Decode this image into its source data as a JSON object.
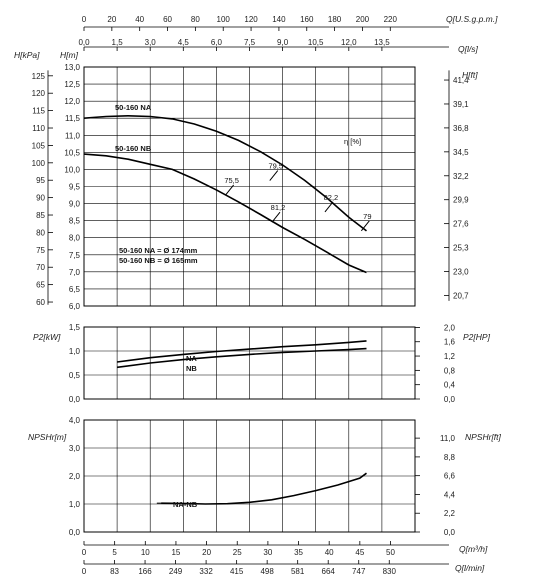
{
  "chart_data": [
    {
      "type": "line",
      "panel": "head",
      "x_unit_label": "Q[l/s]",
      "top_axis_label": "Q[U.S.g.p.m.]",
      "top_ticks": [
        "0",
        "20",
        "40",
        "60",
        "80",
        "100",
        "120",
        "140",
        "160",
        "180",
        "200",
        "220"
      ],
      "x_ticks": [
        "0,0",
        "1,5",
        "3,0",
        "4,5",
        "6,0",
        "7,5",
        "9,0",
        "10,5",
        "12,0",
        "13,5"
      ],
      "xlim": [
        0,
        15
      ],
      "ylabel_left": "H[m]",
      "ylabel_far_left": "H[kPa]",
      "ylabel_right": "H[ft]",
      "ylim": [
        6.0,
        13.0
      ],
      "y_ticks": [
        "6,0",
        "6,5",
        "7,0",
        "7,5",
        "8,0",
        "8,5",
        "9,0",
        "9,5",
        "10,0",
        "10,5",
        "11,0",
        "11,5",
        "12,0",
        "12,5",
        "13,0"
      ],
      "kpa_ticks": [
        "60",
        "65",
        "70",
        "75",
        "80",
        "85",
        "90",
        "95",
        "100",
        "105",
        "110",
        "115",
        "120",
        "125"
      ],
      "ft_ticks": [
        "20,7",
        "23,0",
        "25,3",
        "27,6",
        "29,9",
        "32,2",
        "34,5",
        "36,8",
        "39,1",
        "41,4"
      ],
      "eta_label": "η [%]",
      "series": [
        {
          "name": "50-160 NA",
          "x": [
            0,
            1,
            2,
            3,
            4,
            5,
            6,
            7,
            8,
            9,
            10,
            11,
            12,
            12.8
          ],
          "y": [
            11.5,
            11.55,
            11.57,
            11.55,
            11.48,
            11.33,
            11.12,
            10.85,
            10.52,
            10.13,
            9.68,
            9.17,
            8.6,
            8.2
          ]
        },
        {
          "name": "50-160 NB",
          "x": [
            0,
            1,
            2,
            3,
            4,
            5,
            6,
            7,
            8,
            9,
            10,
            11,
            12,
            12.8
          ],
          "y": [
            10.45,
            10.4,
            10.3,
            10.15,
            10.0,
            9.72,
            9.4,
            9.05,
            8.68,
            8.3,
            7.95,
            7.58,
            7.2,
            6.98
          ]
        }
      ],
      "efficiency_marks": [
        {
          "label": "75,5",
          "x": 6.6,
          "y": 9.4
        },
        {
          "label": "79,5",
          "x": 8.6,
          "y": 9.82
        },
        {
          "label": "81,2",
          "x": 8.7,
          "y": 8.6
        },
        {
          "label": "82,2",
          "x": 11.1,
          "y": 8.9
        },
        {
          "label": "79",
          "x": 12.75,
          "y": 8.35
        }
      ],
      "legend": [
        "50-160 NA = Ø 174mm",
        "50-160 NB = Ø 165mm"
      ]
    },
    {
      "type": "line",
      "panel": "power",
      "ylabel_left": "P2[kW]",
      "ylabel_right": "P2[HP]",
      "ylim": [
        0,
        1.5
      ],
      "y_ticks": [
        "0,0",
        "0,5",
        "1,0",
        "1,5"
      ],
      "hp_ticks": [
        "0,0",
        "0,4",
        "0,8",
        "1,2",
        "1,6",
        "2,0"
      ],
      "xlim": [
        0,
        15
      ],
      "series": [
        {
          "name": "NA",
          "x": [
            1.5,
            3,
            4.5,
            6,
            7.5,
            9,
            10.5,
            12,
            12.8
          ],
          "y": [
            0.77,
            0.86,
            0.93,
            0.99,
            1.04,
            1.09,
            1.13,
            1.18,
            1.21
          ]
        },
        {
          "name": "NB",
          "x": [
            1.5,
            3,
            4.5,
            6,
            7.5,
            9,
            10.5,
            12,
            12.8
          ],
          "y": [
            0.66,
            0.75,
            0.82,
            0.88,
            0.93,
            0.97,
            1.0,
            1.03,
            1.05
          ]
        }
      ]
    },
    {
      "type": "line",
      "panel": "npsh",
      "ylabel_left": "NPSHr[m]",
      "ylabel_right": "NPSHr[ft]",
      "ylim": [
        0,
        4.0
      ],
      "y_ticks": [
        "0,0",
        "1,0",
        "2,0",
        "3,0",
        "4,0"
      ],
      "ft_ticks": [
        "0,0",
        "2,2",
        "4,4",
        "6,6",
        "8,8",
        "11,0"
      ],
      "xlim": [
        0,
        15
      ],
      "x_ticks_m3h": [
        "0",
        "5",
        "10",
        "15",
        "20",
        "25",
        "30",
        "35",
        "40",
        "45",
        "50"
      ],
      "x_label_m3h": "Q[m³/h]",
      "x_ticks_lmin": [
        "0",
        "83",
        "166",
        "249",
        "332",
        "415",
        "498",
        "581",
        "664",
        "747",
        "830"
      ],
      "x_label_lmin": "Q[l/min]",
      "series": [
        {
          "name": "NA-NB",
          "x": [
            3.5,
            4.5,
            5.5,
            6.5,
            7.5,
            8.5,
            9.5,
            10.5,
            11.5,
            12.5,
            12.8
          ],
          "y": [
            1.03,
            1.02,
            1.0,
            1.01,
            1.06,
            1.15,
            1.3,
            1.48,
            1.68,
            1.92,
            2.1
          ]
        }
      ]
    }
  ]
}
